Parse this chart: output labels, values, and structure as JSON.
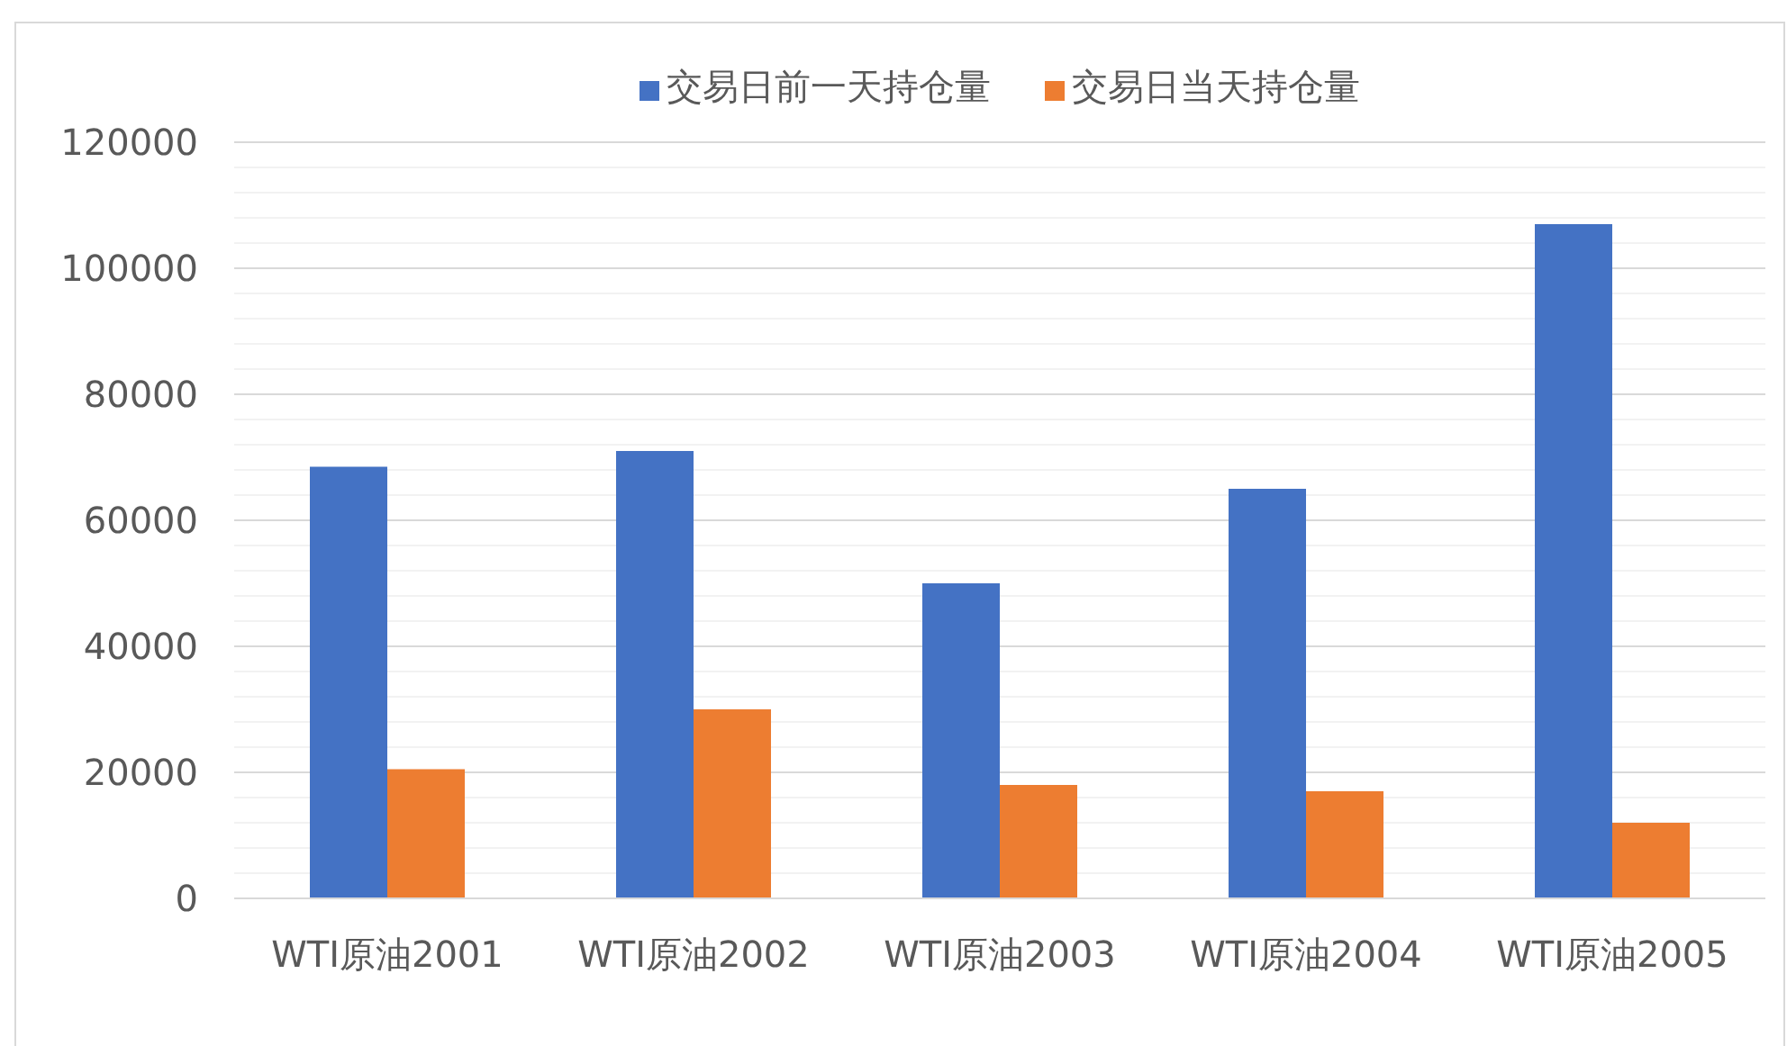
{
  "chart_data": {
    "type": "bar",
    "categories": [
      "WTI原油2001",
      "WTI原油2002",
      "WTI原油2003",
      "WTI原油2004",
      "WTI原油2005"
    ],
    "series": [
      {
        "name": "交易日前一天持仓量",
        "color": "#4472c4",
        "values": [
          68500,
          71000,
          50000,
          65000,
          107000
        ]
      },
      {
        "name": "交易日当天持仓量",
        "color": "#ed7d31",
        "values": [
          20500,
          30000,
          18000,
          17000,
          12000
        ]
      }
    ],
    "ylim": [
      0,
      120000
    ],
    "yticks": [
      0,
      20000,
      40000,
      60000,
      80000,
      100000,
      120000
    ],
    "grid": "y",
    "legend": "top"
  }
}
